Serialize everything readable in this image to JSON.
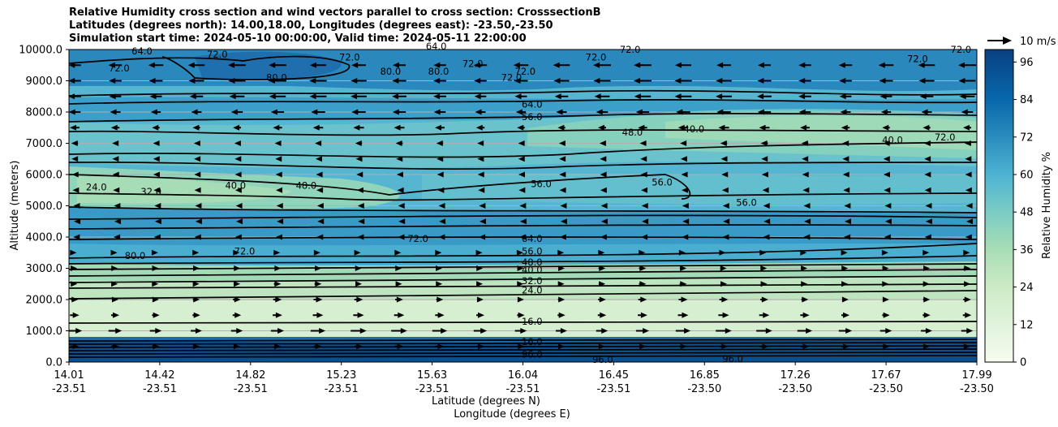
{
  "chart_data": {
    "type": "heatmap",
    "title_lines": [
      "Relative Humidity cross section and wind vectors parallel to cross section: CrosssectionB",
      "Latitudes (degrees north): 14.00,18.00, Longitudes (degrees east): -23.50,-23.50",
      "Simulation start time: 2024-05-10 00:00:00, Valid time: 2024-05-11 22:00:00"
    ],
    "xlabel_lines": [
      "Latitude (degrees N)",
      "Longitude (degrees E)"
    ],
    "ylabel": "Altitude (meters)",
    "ylim": [
      0,
      10000
    ],
    "y_ticks": [
      "0.0",
      "1000.0",
      "2000.0",
      "3000.0",
      "4000.0",
      "5000.0",
      "6000.0",
      "7000.0",
      "8000.0",
      "9000.0",
      "10000.0"
    ],
    "y_tick_values": [
      0,
      1000,
      2000,
      3000,
      4000,
      5000,
      6000,
      7000,
      8000,
      9000,
      10000
    ],
    "x_ticks": [
      {
        "lat": "14.01",
        "lon": "-23.51"
      },
      {
        "lat": "14.42",
        "lon": "-23.51"
      },
      {
        "lat": "14.82",
        "lon": "-23.51"
      },
      {
        "lat": "15.23",
        "lon": "-23.51"
      },
      {
        "lat": "15.63",
        "lon": "-23.51"
      },
      {
        "lat": "16.04",
        "lon": "-23.51"
      },
      {
        "lat": "16.45",
        "lon": "-23.51"
      },
      {
        "lat": "16.85",
        "lon": "-23.50"
      },
      {
        "lat": "17.26",
        "lon": "-23.50"
      },
      {
        "lat": "17.67",
        "lon": "-23.50"
      },
      {
        "lat": "17.99",
        "lon": "-23.50"
      }
    ],
    "grid": "horizontal",
    "colorbar": {
      "label": "Relative Humidity %",
      "range": [
        0,
        100
      ],
      "ticks": [
        "0",
        "12",
        "24",
        "36",
        "48",
        "60",
        "72",
        "84",
        "96"
      ],
      "tick_values": [
        0,
        12,
        24,
        36,
        48,
        60,
        72,
        84,
        96
      ],
      "colormap": "GnBu"
    },
    "wind_key_label": "10 m/s",
    "contour_labels": [
      {
        "text": "64.0",
        "lat": 16.04,
        "alt": 8250
      },
      {
        "text": "56.0",
        "lat": 16.04,
        "alt": 7850
      },
      {
        "text": "48.0",
        "lat": 16.48,
        "alt": 7350
      },
      {
        "text": "40.0",
        "lat": 16.75,
        "alt": 7450
      },
      {
        "text": "56.0",
        "lat": 16.08,
        "alt": 5700
      },
      {
        "text": "56.0",
        "lat": 16.61,
        "alt": 5750
      },
      {
        "text": "56.0",
        "lat": 16.98,
        "alt": 5100
      },
      {
        "text": "24.0",
        "lat": 14.13,
        "alt": 5600
      },
      {
        "text": "32.0",
        "lat": 14.37,
        "alt": 5450
      },
      {
        "text": "40.0",
        "lat": 14.74,
        "alt": 5650
      },
      {
        "text": "48.0",
        "lat": 15.05,
        "alt": 5650
      },
      {
        "text": "72.0",
        "lat": 15.54,
        "alt": 3950
      },
      {
        "text": "72.0",
        "lat": 14.78,
        "alt": 3550
      },
      {
        "text": "80.0",
        "lat": 14.3,
        "alt": 3400
      },
      {
        "text": "64.0",
        "lat": 16.04,
        "alt": 3950
      },
      {
        "text": "56.0",
        "lat": 16.04,
        "alt": 3550
      },
      {
        "text": "48.0",
        "lat": 16.04,
        "alt": 3200
      },
      {
        "text": "40.0",
        "lat": 16.04,
        "alt": 2950
      },
      {
        "text": "32.0",
        "lat": 16.04,
        "alt": 2600
      },
      {
        "text": "24.0",
        "lat": 16.04,
        "alt": 2300
      },
      {
        "text": "16.0",
        "lat": 16.04,
        "alt": 1300
      },
      {
        "text": "16.0",
        "lat": 16.04,
        "alt": 650
      },
      {
        "text": "96.0",
        "lat": 16.04,
        "alt": 250
      },
      {
        "text": "96.0",
        "lat": 16.35,
        "alt": 80
      },
      {
        "text": "96.0",
        "lat": 16.92,
        "alt": 100
      },
      {
        "text": "72.0",
        "lat": 14.23,
        "alt": 9400
      },
      {
        "text": "64.0",
        "lat": 14.33,
        "alt": 9950
      },
      {
        "text": "72.0",
        "lat": 14.66,
        "alt": 9850
      },
      {
        "text": "80.0",
        "lat": 14.92,
        "alt": 9100
      },
      {
        "text": "72.0",
        "lat": 15.24,
        "alt": 9750
      },
      {
        "text": "80.0",
        "lat": 15.42,
        "alt": 9300
      },
      {
        "text": "80.0",
        "lat": 15.63,
        "alt": 9300
      },
      {
        "text": "72.0",
        "lat": 15.78,
        "alt": 9550
      },
      {
        "text": "72.0",
        "lat": 15.95,
        "alt": 9100
      },
      {
        "text": "72.0",
        "lat": 16.01,
        "alt": 9300
      },
      {
        "text": "72.0",
        "lat": 16.32,
        "alt": 9750
      },
      {
        "text": "72.0",
        "lat": 16.47,
        "alt": 10000
      },
      {
        "text": "72.0",
        "lat": 17.73,
        "alt": 9700
      },
      {
        "text": "72.0",
        "lat": 17.92,
        "alt": 10000
      },
      {
        "text": "40.0",
        "lat": 17.62,
        "alt": 7100
      },
      {
        "text": "72.0",
        "lat": 17.85,
        "alt": 7200
      },
      {
        "text": "64.0",
        "lat": 15.62,
        "alt": 10100
      }
    ],
    "wind_levels": [
      {
        "alt": 9500,
        "u": -1.0
      },
      {
        "alt": 9000,
        "u": -1.0
      },
      {
        "alt": 8500,
        "u": -0.95
      },
      {
        "alt": 8000,
        "u": -0.8
      },
      {
        "alt": 7500,
        "u": -0.6
      },
      {
        "alt": 7000,
        "u": -0.4
      },
      {
        "alt": 6500,
        "u": -0.35
      },
      {
        "alt": 6000,
        "u": -0.3
      },
      {
        "alt": 5500,
        "u": -0.25
      },
      {
        "alt": 5000,
        "u": -0.15
      },
      {
        "alt": 4500,
        "u": -0.1
      },
      {
        "alt": 4000,
        "u": -0.2
      },
      {
        "alt": 3500,
        "u": 0.3
      },
      {
        "alt": 3000,
        "u": 0.4
      },
      {
        "alt": 2500,
        "u": 0.4
      },
      {
        "alt": 2000,
        "u": 0.5
      },
      {
        "alt": 1500,
        "u": 0.6
      },
      {
        "alt": 1000,
        "u": 0.9
      },
      {
        "alt": 500,
        "u": 0.5
      }
    ]
  }
}
